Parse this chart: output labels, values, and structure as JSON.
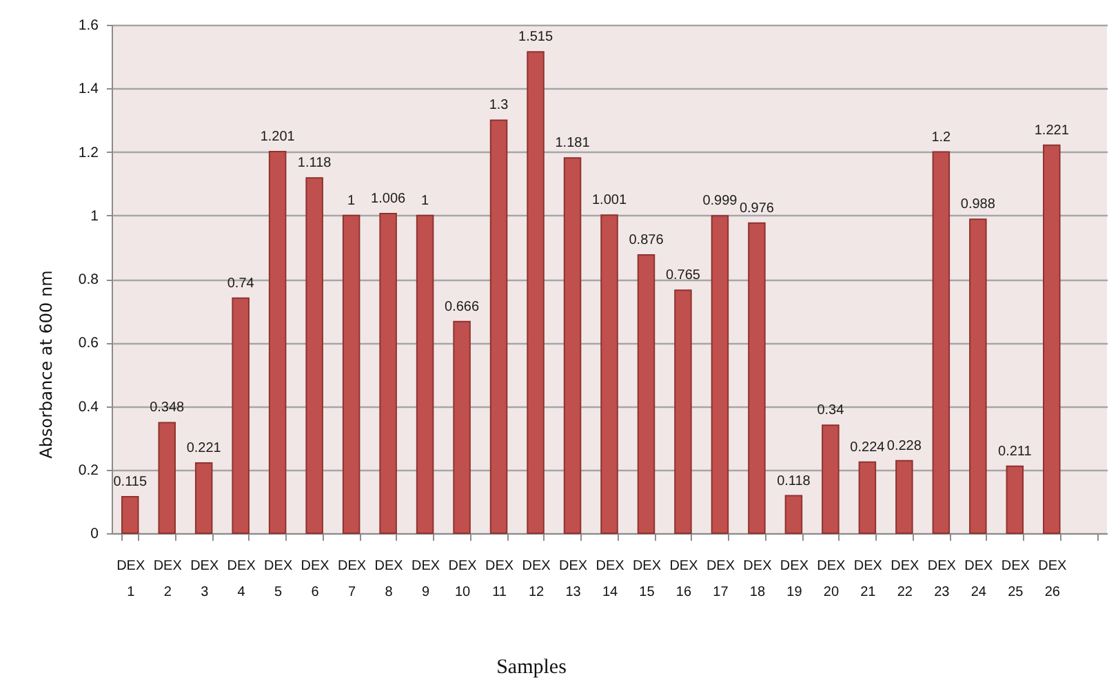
{
  "chart_data": {
    "type": "bar",
    "xlabel": "Samples",
    "ylabel": "Absorbance at 600 nm",
    "categories": [
      "DEX 1",
      "DEX 2",
      "DEX 3",
      "DEX 4",
      "DEX 5",
      "DEX 6",
      "DEX 7",
      "DEX 8",
      "DEX 9",
      "DEX 10",
      "DEX 11",
      "DEX 12",
      "DEX 13",
      "DEX 14",
      "DEX 15",
      "DEX 16",
      "DEX 17",
      "DEX 18",
      "DEX 19",
      "DEX 20",
      "DEX 21",
      "DEX 22",
      "DEX 23",
      "DEX 24",
      "DEX 25",
      "DEX 26",
      null
    ],
    "values": [
      0.115,
      0.348,
      0.221,
      0.74,
      1.201,
      1.118,
      1,
      1.006,
      1,
      0.666,
      1.3,
      1.515,
      1.181,
      1.001,
      0.876,
      0.765,
      0.999,
      0.976,
      0.118,
      0.34,
      0.224,
      0.228,
      1.2,
      0.988,
      0.211,
      1.221,
      null
    ],
    "color": "#c0504d",
    "ylim": [
      0,
      1.6
    ],
    "yticks": [
      0,
      0.2,
      0.4,
      0.6,
      0.8,
      1,
      1.2,
      1.4,
      1.6
    ],
    "grid": "y",
    "data_labels": true
  }
}
